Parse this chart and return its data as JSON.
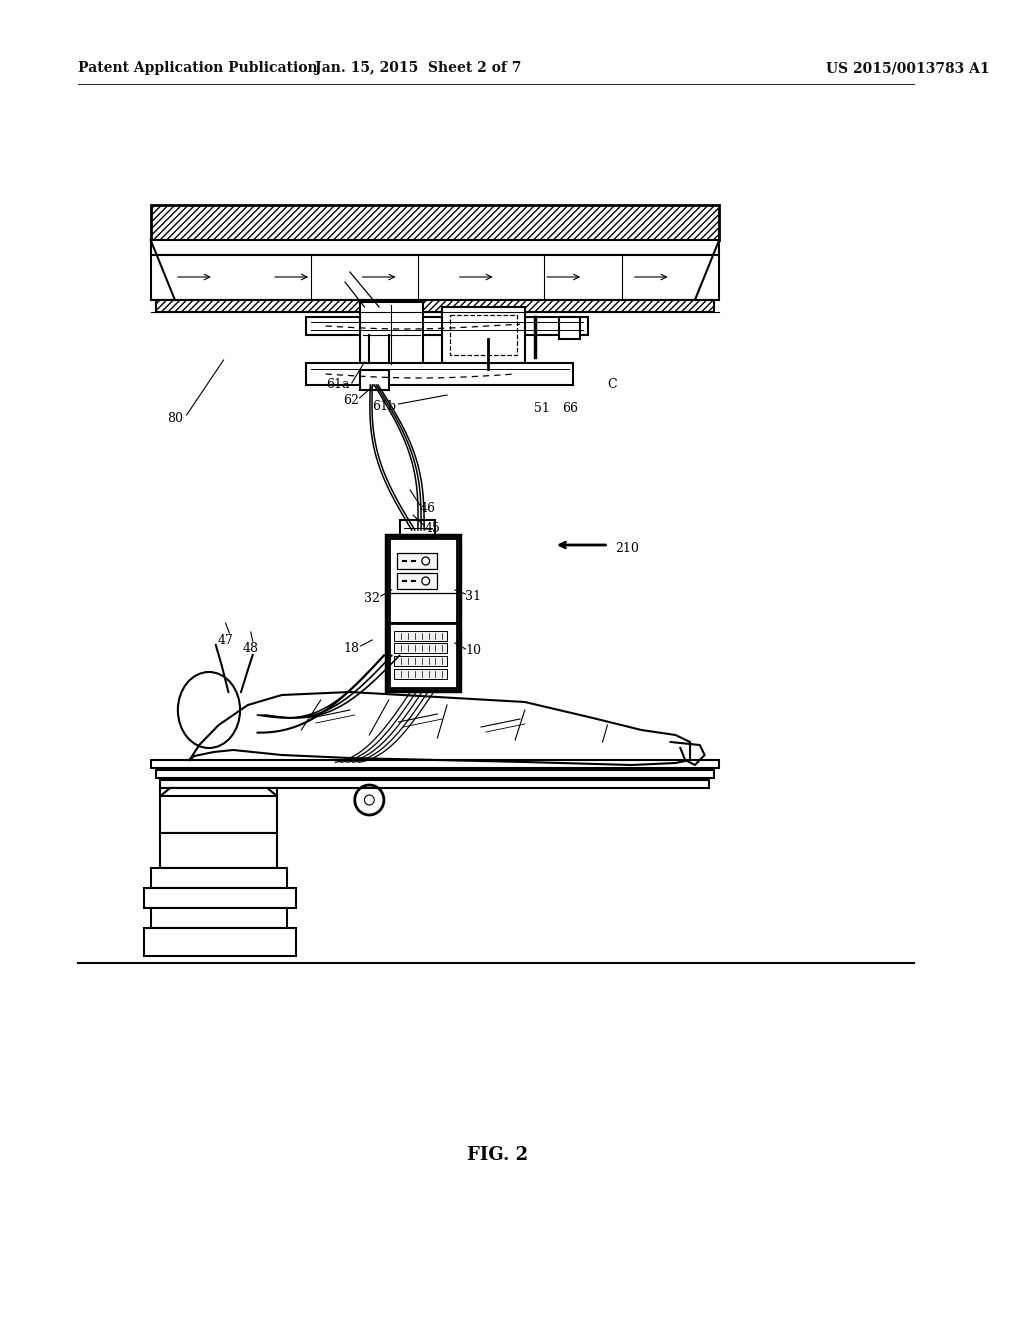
{
  "bg_color": "#ffffff",
  "header_left": "Patent Application Publication",
  "header_center": "Jan. 15, 2015  Sheet 2 of 7",
  "header_right": "US 2015/0013783 A1",
  "footer_label": "FIG. 2"
}
